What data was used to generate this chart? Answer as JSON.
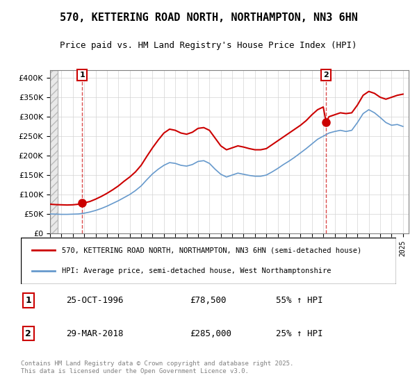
{
  "title": "570, KETTERING ROAD NORTH, NORTHAMPTON, NN3 6HN",
  "subtitle": "Price paid vs. HM Land Registry's House Price Index (HPI)",
  "legend_line1": "570, KETTERING ROAD NORTH, NORTHAMPTON, NN3 6HN (semi-detached house)",
  "legend_line2": "HPI: Average price, semi-detached house, West Northamptonshire",
  "sale1_label": "1",
  "sale1_date": "25-OCT-1996",
  "sale1_price": "£78,500",
  "sale1_hpi": "55% ↑ HPI",
  "sale2_label": "2",
  "sale2_date": "29-MAR-2018",
  "sale2_price": "£285,000",
  "sale2_hpi": "25% ↑ HPI",
  "footer": "Contains HM Land Registry data © Crown copyright and database right 2025.\nThis data is licensed under the Open Government Licence v3.0.",
  "red_color": "#cc0000",
  "blue_color": "#6699cc",
  "background_hatch_color": "#e8e8e8",
  "ylim": [
    0,
    420000
  ],
  "yticks": [
    0,
    50000,
    100000,
    150000,
    200000,
    250000,
    300000,
    350000,
    400000
  ],
  "xlim_start": 1994.0,
  "xlim_end": 2025.5,
  "sale1_x": 1996.82,
  "sale1_y": 78500,
  "sale2_x": 2018.25,
  "sale2_y": 285000,
  "hpi_red_x": [
    1994.0,
    1994.5,
    1995.0,
    1995.5,
    1996.0,
    1996.5,
    1997.0,
    1997.5,
    1998.0,
    1998.5,
    1999.0,
    1999.5,
    2000.0,
    2000.5,
    2001.0,
    2001.5,
    2002.0,
    2002.5,
    2003.0,
    2003.5,
    2004.0,
    2004.5,
    2005.0,
    2005.5,
    2006.0,
    2006.5,
    2007.0,
    2007.5,
    2008.0,
    2008.5,
    2009.0,
    2009.5,
    2010.0,
    2010.5,
    2011.0,
    2011.5,
    2012.0,
    2012.5,
    2013.0,
    2013.5,
    2014.0,
    2014.5,
    2015.0,
    2015.5,
    2016.0,
    2016.5,
    2017.0,
    2017.5,
    2018.0,
    2018.25,
    2018.5,
    2019.0,
    2019.5,
    2020.0,
    2020.5,
    2021.0,
    2021.5,
    2022.0,
    2022.5,
    2023.0,
    2023.5,
    2024.0,
    2024.5,
    2025.0
  ],
  "hpi_red_y": [
    75000,
    74000,
    73500,
    73000,
    73500,
    75000,
    78500,
    82000,
    88000,
    95000,
    103000,
    112000,
    122000,
    134000,
    145000,
    158000,
    175000,
    198000,
    220000,
    240000,
    258000,
    268000,
    265000,
    258000,
    255000,
    260000,
    270000,
    272000,
    265000,
    245000,
    225000,
    215000,
    220000,
    225000,
    222000,
    218000,
    215000,
    215000,
    218000,
    228000,
    238000,
    248000,
    258000,
    268000,
    278000,
    290000,
    305000,
    318000,
    325000,
    285000,
    300000,
    305000,
    310000,
    308000,
    310000,
    330000,
    355000,
    365000,
    360000,
    350000,
    345000,
    350000,
    355000,
    358000
  ],
  "hpi_blue_x": [
    1994.0,
    1994.5,
    1995.0,
    1995.5,
    1996.0,
    1996.5,
    1997.0,
    1997.5,
    1998.0,
    1998.5,
    1999.0,
    1999.5,
    2000.0,
    2000.5,
    2001.0,
    2001.5,
    2002.0,
    2002.5,
    2003.0,
    2003.5,
    2004.0,
    2004.5,
    2005.0,
    2005.5,
    2006.0,
    2006.5,
    2007.0,
    2007.5,
    2008.0,
    2008.5,
    2009.0,
    2009.5,
    2010.0,
    2010.5,
    2011.0,
    2011.5,
    2012.0,
    2012.5,
    2013.0,
    2013.5,
    2014.0,
    2014.5,
    2015.0,
    2015.5,
    2016.0,
    2016.5,
    2017.0,
    2017.5,
    2018.0,
    2018.5,
    2019.0,
    2019.5,
    2020.0,
    2020.5,
    2021.0,
    2021.5,
    2022.0,
    2022.5,
    2023.0,
    2023.5,
    2024.0,
    2024.5,
    2025.0
  ],
  "hpi_blue_y": [
    50000,
    49500,
    49000,
    49000,
    49500,
    50000,
    52000,
    55000,
    59000,
    64000,
    70000,
    77000,
    84000,
    92000,
    100000,
    110000,
    122000,
    138000,
    153000,
    165000,
    175000,
    182000,
    180000,
    175000,
    173000,
    177000,
    185000,
    187000,
    180000,
    165000,
    152000,
    145000,
    150000,
    155000,
    152000,
    149000,
    147000,
    147000,
    150000,
    158000,
    167000,
    177000,
    186000,
    196000,
    207000,
    218000,
    230000,
    242000,
    250000,
    258000,
    262000,
    265000,
    262000,
    265000,
    285000,
    308000,
    318000,
    310000,
    298000,
    285000,
    278000,
    280000,
    275000
  ]
}
